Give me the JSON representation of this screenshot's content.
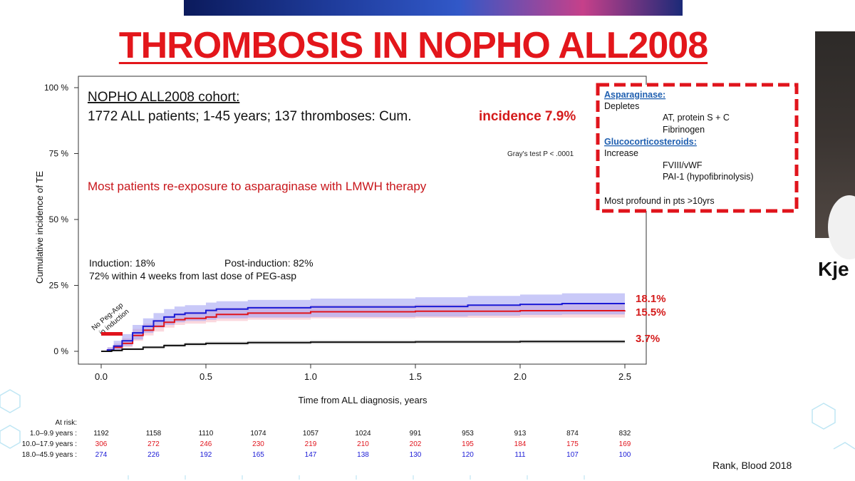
{
  "slide": {
    "title": "THROMBOSIS IN NOPHO ALL2008",
    "speaker_partial": "Kje",
    "citation": "Rank, Blood 2018"
  },
  "colors": {
    "title_red": "#e3161b",
    "series_blue": "#1a1ad6",
    "series_red": "#e0141c",
    "series_black": "#111111",
    "band_blue": "#9c9cf2",
    "band_pink": "#f7b8c2",
    "band_gray": "#c8c8c8"
  },
  "annotations": {
    "cohort_heading": "NOPHO ALL2008 cohort:",
    "cohort_summary": "1772 ALL patients; 1-45 years; 137 thromboses:  Cum.",
    "incidence": "incidence 7.9%",
    "grays_test": "Gray's test P < .0001",
    "reexposure": "Most patients re-exposure to asparaginase with LMWH therapy",
    "induction": "Induction: 18%",
    "post_induction": "Post-induction: 82%",
    "within_weeks": "72% within 4 weeks from last dose of PEG-asp",
    "no_peg_line1": "No Peg-Asp",
    "no_peg_line2": "in induction",
    "end_blue": "18.1%",
    "end_red": "15.5%",
    "end_black": "3.7%"
  },
  "infobox": {
    "asparaginase_heading": "Asparaginase:",
    "asparaginase_verb": "Depletes",
    "asparaginase_item1": "AT, protein S + C",
    "asparaginase_item2": "Fibrinogen",
    "gluco_heading": "Glucocorticosteroids:",
    "gluco_verb": "Increase",
    "gluco_item1": "FVIII/vWF",
    "gluco_item2": "PAI-1 (hypofibrinolysis)",
    "footer": "Most profound in pts >10yrs"
  },
  "chart_data": {
    "type": "line",
    "title": "",
    "xlabel": "Time from ALL diagnosis, years",
    "ylabel": "Cumulative incidence of TE",
    "xlim": [
      0,
      2.5
    ],
    "ylim": [
      0,
      1
    ],
    "x_ticks": [
      0.0,
      0.5,
      1.0,
      1.5,
      2.0,
      2.5
    ],
    "x_tick_labels": [
      "0.0",
      "0.5",
      "1.0",
      "1.5",
      "2.0",
      "2.5"
    ],
    "y_ticks": [
      0,
      0.25,
      0.5,
      0.75,
      1.0
    ],
    "y_tick_labels": [
      "0 %",
      "25 %",
      "50 %",
      "75 %",
      "100 %"
    ],
    "grid": false,
    "series": [
      {
        "name": "10.0–17.9 years",
        "color": "#e0141c",
        "x": [
          0,
          0.03,
          0.06,
          0.1,
          0.15,
          0.2,
          0.25,
          0.3,
          0.35,
          0.4,
          0.5,
          0.55,
          0.7,
          1.0,
          1.5,
          2.0,
          2.5
        ],
        "y": [
          0,
          0.005,
          0.015,
          0.03,
          0.06,
          0.08,
          0.095,
          0.11,
          0.12,
          0.125,
          0.13,
          0.14,
          0.145,
          0.15,
          0.152,
          0.154,
          0.155
        ],
        "ci_low": [
          0,
          0.0,
          0.005,
          0.015,
          0.04,
          0.06,
          0.075,
          0.09,
          0.1,
          0.105,
          0.11,
          0.115,
          0.12,
          0.125,
          0.127,
          0.128,
          0.13
        ],
        "ci_high": [
          0,
          0.015,
          0.03,
          0.05,
          0.085,
          0.105,
          0.12,
          0.135,
          0.145,
          0.15,
          0.16,
          0.165,
          0.17,
          0.175,
          0.178,
          0.18,
          0.182
        ]
      },
      {
        "name": "18.0–45.9 years",
        "color": "#1a1ad6",
        "x": [
          0,
          0.03,
          0.06,
          0.1,
          0.15,
          0.2,
          0.25,
          0.3,
          0.35,
          0.4,
          0.5,
          0.55,
          0.7,
          1.0,
          1.5,
          1.75,
          2.0,
          2.2,
          2.5
        ],
        "y": [
          0,
          0.005,
          0.02,
          0.04,
          0.07,
          0.095,
          0.115,
          0.13,
          0.14,
          0.145,
          0.155,
          0.16,
          0.165,
          0.168,
          0.17,
          0.175,
          0.178,
          0.181,
          0.181
        ],
        "ci_low": [
          0,
          0.0,
          0.005,
          0.02,
          0.045,
          0.07,
          0.09,
          0.1,
          0.11,
          0.115,
          0.12,
          0.125,
          0.128,
          0.13,
          0.132,
          0.135,
          0.138,
          0.14,
          0.14
        ],
        "ci_high": [
          0,
          0.015,
          0.04,
          0.065,
          0.1,
          0.125,
          0.145,
          0.16,
          0.17,
          0.175,
          0.185,
          0.19,
          0.195,
          0.2,
          0.205,
          0.21,
          0.215,
          0.22,
          0.225
        ]
      },
      {
        "name": "1.0–9.9 years",
        "color": "#111111",
        "x": [
          0,
          0.05,
          0.1,
          0.2,
          0.3,
          0.4,
          0.5,
          0.7,
          1.0,
          1.5,
          2.0,
          2.5
        ],
        "y": [
          0,
          0.003,
          0.008,
          0.015,
          0.022,
          0.027,
          0.03,
          0.033,
          0.035,
          0.036,
          0.037,
          0.037
        ],
        "ci_low": [
          0,
          0.0,
          0.004,
          0.01,
          0.016,
          0.02,
          0.023,
          0.026,
          0.028,
          0.029,
          0.03,
          0.03
        ],
        "ci_high": [
          0,
          0.006,
          0.012,
          0.02,
          0.028,
          0.034,
          0.037,
          0.04,
          0.042,
          0.043,
          0.044,
          0.044
        ]
      }
    ],
    "at_risk": {
      "label": "At risk:",
      "times": [
        0,
        0.25,
        0.5,
        0.75,
        1.0,
        1.25,
        1.5,
        1.75,
        2.0,
        2.25,
        2.5
      ],
      "rows": [
        {
          "label": "1.0–9.9 years :",
          "color": "#111111",
          "values": [
            1192,
            1158,
            1110,
            1074,
            1057,
            1024,
            991,
            953,
            913,
            874,
            832
          ]
        },
        {
          "label": "10.0–17.9 years :",
          "color": "#e0141c",
          "values": [
            306,
            272,
            246,
            230,
            219,
            210,
            202,
            195,
            184,
            175,
            169
          ]
        },
        {
          "label": "18.0–45.9 years :",
          "color": "#1a1ad6",
          "values": [
            274,
            226,
            192,
            165,
            147,
            138,
            130,
            120,
            111,
            107,
            100
          ]
        }
      ]
    }
  }
}
